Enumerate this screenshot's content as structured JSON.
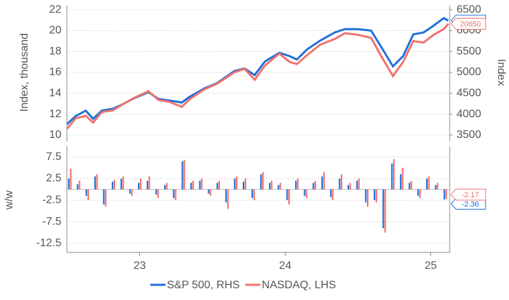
{
  "chart_data": [
    {
      "type": "line",
      "y_label": "Index, thousand",
      "y2_label": "Index",
      "x": [
        22.5,
        22.56,
        22.63,
        22.68,
        22.74,
        22.82,
        22.89,
        22.96,
        23.06,
        23.13,
        23.2,
        23.29,
        23.34,
        23.44,
        23.53,
        23.65,
        23.72,
        23.79,
        23.86,
        23.96,
        24.03,
        24.08,
        24.15,
        24.24,
        24.34,
        24.41,
        24.5,
        24.59,
        24.67,
        24.74,
        24.81,
        24.88,
        24.95,
        25.02,
        25.09,
        25.12
      ],
      "xlim": [
        22.5,
        25.13
      ],
      "ylim": [
        9.4,
        22.4
      ],
      "yticks": [
        10,
        12,
        14,
        16,
        18,
        20,
        22
      ],
      "y2lim": [
        3350,
        6600
      ],
      "y2ticks": [
        3500,
        4000,
        4500,
        5000,
        5500,
        6000,
        6500
      ],
      "grid": true,
      "series": [
        {
          "name": "S&P 500, RHS",
          "color": "#1f6fd9",
          "axis": "y2",
          "values": [
            3760,
            3955,
            4085,
            3890,
            4085,
            4135,
            4250,
            4380,
            4525,
            4365,
            4330,
            4280,
            4410,
            4610,
            4740,
            5030,
            5095,
            4935,
            5260,
            5470,
            5390,
            5310,
            5550,
            5760,
            5955,
            6035,
            6035,
            6000,
            5550,
            5145,
            5390,
            5910,
            5955,
            6120,
            6300,
            6238
          ]
        },
        {
          "name": "NASDAQ, LHS",
          "color": "#f2716d",
          "values": [
            10.6,
            11.6,
            11.85,
            11.2,
            12.2,
            12.4,
            13.0,
            13.55,
            14.2,
            13.35,
            13.2,
            12.7,
            13.4,
            14.35,
            14.9,
            16.0,
            16.35,
            15.3,
            16.65,
            17.8,
            17.0,
            16.8,
            17.65,
            18.65,
            19.2,
            19.75,
            19.6,
            19.3,
            17.3,
            15.65,
            17.0,
            19.0,
            18.85,
            19.6,
            20.15,
            20.65
          ],
          "value_labels": [
            null,
            null,
            null,
            null,
            null,
            null,
            null,
            null,
            null,
            null,
            null,
            null,
            null,
            null,
            null,
            null,
            null,
            null,
            null,
            null,
            null,
            null,
            null,
            null,
            null,
            null,
            null,
            null,
            null,
            null,
            null,
            null,
            null,
            null,
            null,
            "20650"
          ]
        }
      ]
    },
    {
      "type": "bar",
      "y_label": "w/w",
      "x": [
        22.52,
        22.58,
        22.64,
        22.7,
        22.76,
        22.82,
        22.88,
        22.94,
        23.0,
        23.06,
        23.12,
        23.18,
        23.24,
        23.3,
        23.36,
        23.42,
        23.48,
        23.54,
        23.6,
        23.66,
        23.72,
        23.78,
        23.84,
        23.9,
        23.96,
        24.02,
        24.08,
        24.14,
        24.2,
        24.26,
        24.32,
        24.38,
        24.44,
        24.5,
        24.56,
        24.62,
        24.68,
        24.74,
        24.8,
        24.86,
        24.92,
        24.98,
        25.04,
        25.1
      ],
      "xlim": [
        22.5,
        25.13
      ],
      "xticks": [
        23,
        24,
        25
      ],
      "ylim": [
        -14.6,
        10
      ],
      "yticks": [
        7.5,
        2.5,
        -2.5,
        -7.5,
        -12.5
      ],
      "grid": true,
      "series": [
        {
          "name": "S&P 500, RHS",
          "color": "#1f6fd9",
          "values": [
            2.5,
            1.2,
            -1.5,
            3.0,
            -3.5,
            1.8,
            2.5,
            -1.0,
            1.5,
            2.0,
            -1.2,
            1.0,
            -2.0,
            6.5,
            1.5,
            2.0,
            -1.0,
            1.5,
            -3.0,
            2.5,
            1.8,
            -2.0,
            3.5,
            1.5,
            1.0,
            -2.5,
            2.0,
            -1.5,
            1.5,
            3.0,
            -1.8,
            2.5,
            1.0,
            2.0,
            -3.0,
            -2.5,
            -9.0,
            6.0,
            3.5,
            1.5,
            -1.5,
            2.5,
            1.0,
            -2.36
          ]
        },
        {
          "name": "NASDAQ, LHS",
          "color": "#f2716d",
          "values": [
            4.8,
            2.0,
            -2.5,
            3.5,
            -4.0,
            2.2,
            3.0,
            -1.5,
            2.5,
            3.0,
            -2.0,
            1.5,
            -2.5,
            6.8,
            2.0,
            2.5,
            -1.5,
            2.0,
            -4.5,
            3.0,
            2.5,
            -2.5,
            4.0,
            2.0,
            1.5,
            -3.5,
            2.5,
            -2.0,
            2.0,
            4.0,
            -2.5,
            3.5,
            1.5,
            2.5,
            -4.0,
            -3.0,
            -10.0,
            7.0,
            5.0,
            2.0,
            -2.0,
            3.0,
            1.5,
            -2.17
          ]
        }
      ]
    }
  ]
}
